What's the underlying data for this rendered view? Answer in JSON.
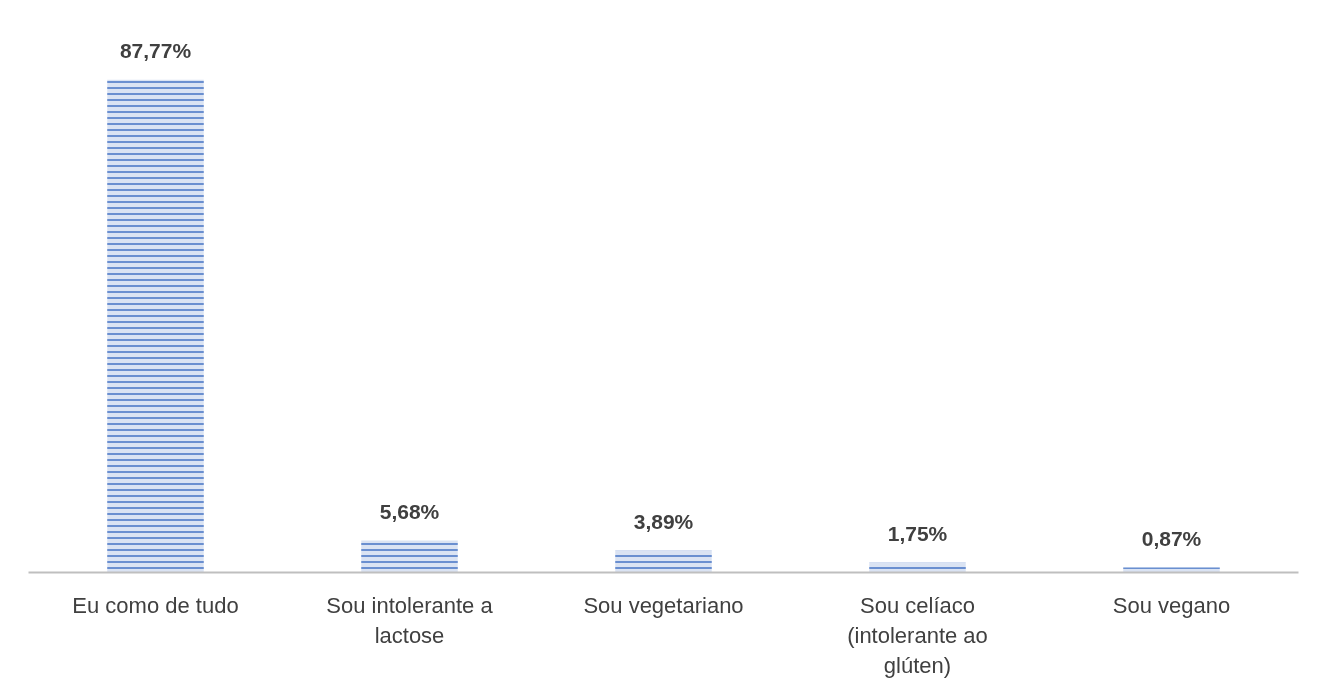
{
  "chart_data": {
    "type": "bar",
    "categories": [
      "Eu como de tudo",
      "Sou intolerante a lactose",
      "Sou vegetariano",
      "Sou celíaco (intolerante ao glúten)",
      "Sou vegano"
    ],
    "values": [
      87.77,
      5.68,
      3.89,
      1.75,
      0.87
    ],
    "value_labels": [
      "87,77%",
      "5,68%",
      "3,89%",
      "1,75%",
      "0,87%"
    ],
    "color": "#4472c4",
    "grid": false
  }
}
